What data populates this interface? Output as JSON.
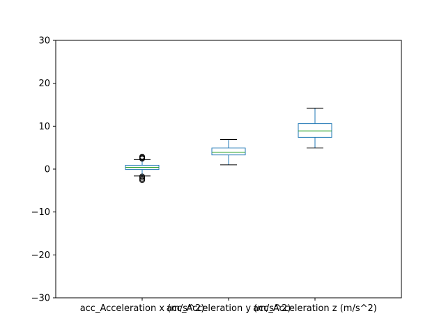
{
  "chart_data": {
    "type": "box",
    "title": "",
    "xlabel": "",
    "ylabel": "",
    "ylim": [
      -30,
      30
    ],
    "yticks": [
      -30,
      -20,
      -10,
      0,
      10,
      20,
      30
    ],
    "grid": false,
    "categories": [
      "acc_Acceleration x (m/s^2)",
      "acc_Acceleration y (m/s^2)",
      "acc_Acceleration z (m/s^2)"
    ],
    "boxes": [
      {
        "whisker_low": -1.6,
        "q1": -0.1,
        "median": 0.4,
        "q3": 0.9,
        "whisker_high": 2.2,
        "outliers": [
          2.4,
          2.6,
          2.8,
          2.9,
          -1.7,
          -2.0,
          -2.3,
          -2.6
        ]
      },
      {
        "whisker_low": 1.0,
        "q1": 3.3,
        "median": 3.9,
        "q3": 4.9,
        "whisker_high": 6.9,
        "outliers": []
      },
      {
        "whisker_low": 4.9,
        "q1": 7.4,
        "median": 8.9,
        "q3": 10.6,
        "whisker_high": 14.2,
        "outliers": []
      }
    ],
    "colors": {
      "box": "#1f77b4",
      "median": "#2ca02c",
      "whisker_cap": "#000000",
      "outlier": "#000000",
      "axes": "#000000"
    }
  }
}
